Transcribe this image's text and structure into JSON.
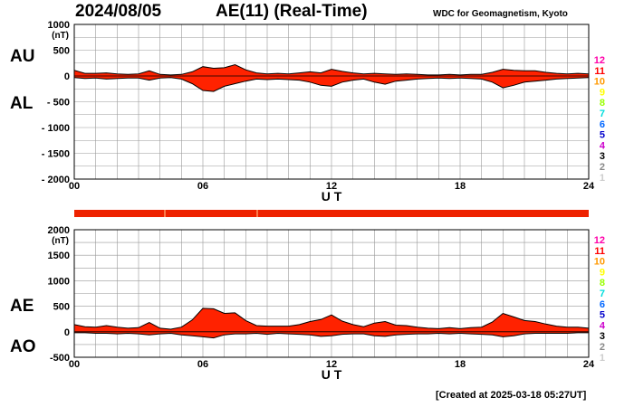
{
  "header": {
    "date": "2024/08/05",
    "title": "AE(11) (Real-Time)",
    "organization": "WDC for Geomagnetism, Kyoto"
  },
  "footer": {
    "created": "[Created at 2025-03-18 05:27UT]"
  },
  "side_labels": {
    "top_upper": "AU",
    "top_lower": "AL",
    "bottom_upper": "AE",
    "bottom_lower": "AO"
  },
  "station_count_legend": {
    "entries": [
      "12",
      "11",
      "10",
      "9",
      "8",
      "7",
      "6",
      "5",
      "4",
      "3",
      "2",
      "1"
    ],
    "colors": [
      "#ff00aa",
      "#ff0000",
      "#ff9900",
      "#ffff00",
      "#99ff00",
      "#00dddd",
      "#0066ff",
      "#0000cc",
      "#cc00cc",
      "#000000",
      "#888888",
      "#cccccc"
    ]
  },
  "colors": {
    "fill": "#ff2200",
    "outline": "#000000",
    "grid": "#999999",
    "station_bar": "#ee2200"
  },
  "chart_data": [
    {
      "type": "area",
      "name": "AU/AL",
      "xlabel": "U T",
      "ylabel": "(nT)",
      "xlim": [
        0,
        24
      ],
      "ylim": [
        -2000,
        1000
      ],
      "x_ticks": [
        "00",
        "06",
        "12",
        "18",
        "24"
      ],
      "y_ticks": [
        "1000",
        "500",
        "0",
        "- 500",
        "- 1000",
        "- 1500",
        "- 2000"
      ],
      "x": [
        0,
        0.5,
        1,
        1.5,
        2,
        2.5,
        3,
        3.5,
        4,
        4.5,
        5,
        5.5,
        6,
        6.5,
        7,
        7.5,
        8,
        8.5,
        9,
        9.5,
        10,
        10.5,
        11,
        11.5,
        12,
        12.5,
        13,
        13.5,
        14,
        14.5,
        15,
        15.5,
        16,
        16.5,
        17,
        17.5,
        18,
        18.5,
        19,
        19.5,
        20,
        20.5,
        21,
        21.5,
        22,
        22.5,
        23,
        23.5,
        24
      ],
      "series": [
        {
          "name": "AU",
          "values": [
            110,
            50,
            50,
            60,
            40,
            30,
            40,
            100,
            30,
            20,
            30,
            80,
            180,
            150,
            160,
            220,
            120,
            60,
            40,
            50,
            40,
            60,
            80,
            60,
            130,
            90,
            60,
            40,
            50,
            40,
            30,
            40,
            30,
            20,
            20,
            30,
            20,
            30,
            30,
            70,
            130,
            110,
            100,
            100,
            70,
            50,
            40,
            50,
            40
          ]
        },
        {
          "name": "AL",
          "values": [
            -30,
            -50,
            -40,
            -60,
            -50,
            -40,
            -40,
            -80,
            -40,
            -30,
            -60,
            -150,
            -280,
            -300,
            -200,
            -150,
            -100,
            -60,
            -70,
            -60,
            -70,
            -80,
            -120,
            -180,
            -200,
            -120,
            -80,
            -60,
            -120,
            -160,
            -100,
            -80,
            -60,
            -50,
            -40,
            -50,
            -40,
            -50,
            -60,
            -120,
            -230,
            -180,
            -120,
            -100,
            -80,
            -60,
            -50,
            -40,
            -30
          ]
        }
      ]
    },
    {
      "type": "area",
      "name": "AE/AO",
      "xlabel": "U T",
      "ylabel": "(nT)",
      "xlim": [
        0,
        24
      ],
      "ylim": [
        -500,
        2000
      ],
      "x_ticks": [
        "00",
        "06",
        "12",
        "18",
        "24"
      ],
      "y_ticks": [
        "2000",
        "1500",
        "1000",
        "500",
        "0",
        "-500"
      ],
      "x": [
        0,
        0.5,
        1,
        1.5,
        2,
        2.5,
        3,
        3.5,
        4,
        4.5,
        5,
        5.5,
        6,
        6.5,
        7,
        7.5,
        8,
        8.5,
        9,
        9.5,
        10,
        10.5,
        11,
        11.5,
        12,
        12.5,
        13,
        13.5,
        14,
        14.5,
        15,
        15.5,
        16,
        16.5,
        17,
        17.5,
        18,
        18.5,
        19,
        19.5,
        20,
        20.5,
        21,
        21.5,
        22,
        22.5,
        23,
        23.5,
        24
      ],
      "series": [
        {
          "name": "AE",
          "values": [
            140,
            100,
            90,
            120,
            90,
            70,
            80,
            180,
            70,
            50,
            90,
            230,
            460,
            450,
            360,
            370,
            220,
            120,
            110,
            110,
            110,
            140,
            200,
            240,
            330,
            210,
            140,
            100,
            170,
            200,
            130,
            120,
            90,
            70,
            60,
            80,
            60,
            80,
            90,
            190,
            360,
            290,
            220,
            200,
            150,
            110,
            90,
            90,
            70
          ]
        },
        {
          "name": "AO",
          "values": [
            -20,
            -20,
            -30,
            -30,
            -40,
            -30,
            -40,
            -60,
            -40,
            -30,
            -60,
            -80,
            -100,
            -120,
            -60,
            -40,
            -40,
            -30,
            -50,
            -30,
            -40,
            -50,
            -60,
            -90,
            -80,
            -50,
            -40,
            -40,
            -80,
            -90,
            -60,
            -50,
            -40,
            -40,
            -30,
            -40,
            -30,
            -40,
            -50,
            -60,
            -100,
            -80,
            -40,
            -30,
            -30,
            -30,
            -30,
            -20,
            -20
          ]
        }
      ]
    }
  ]
}
